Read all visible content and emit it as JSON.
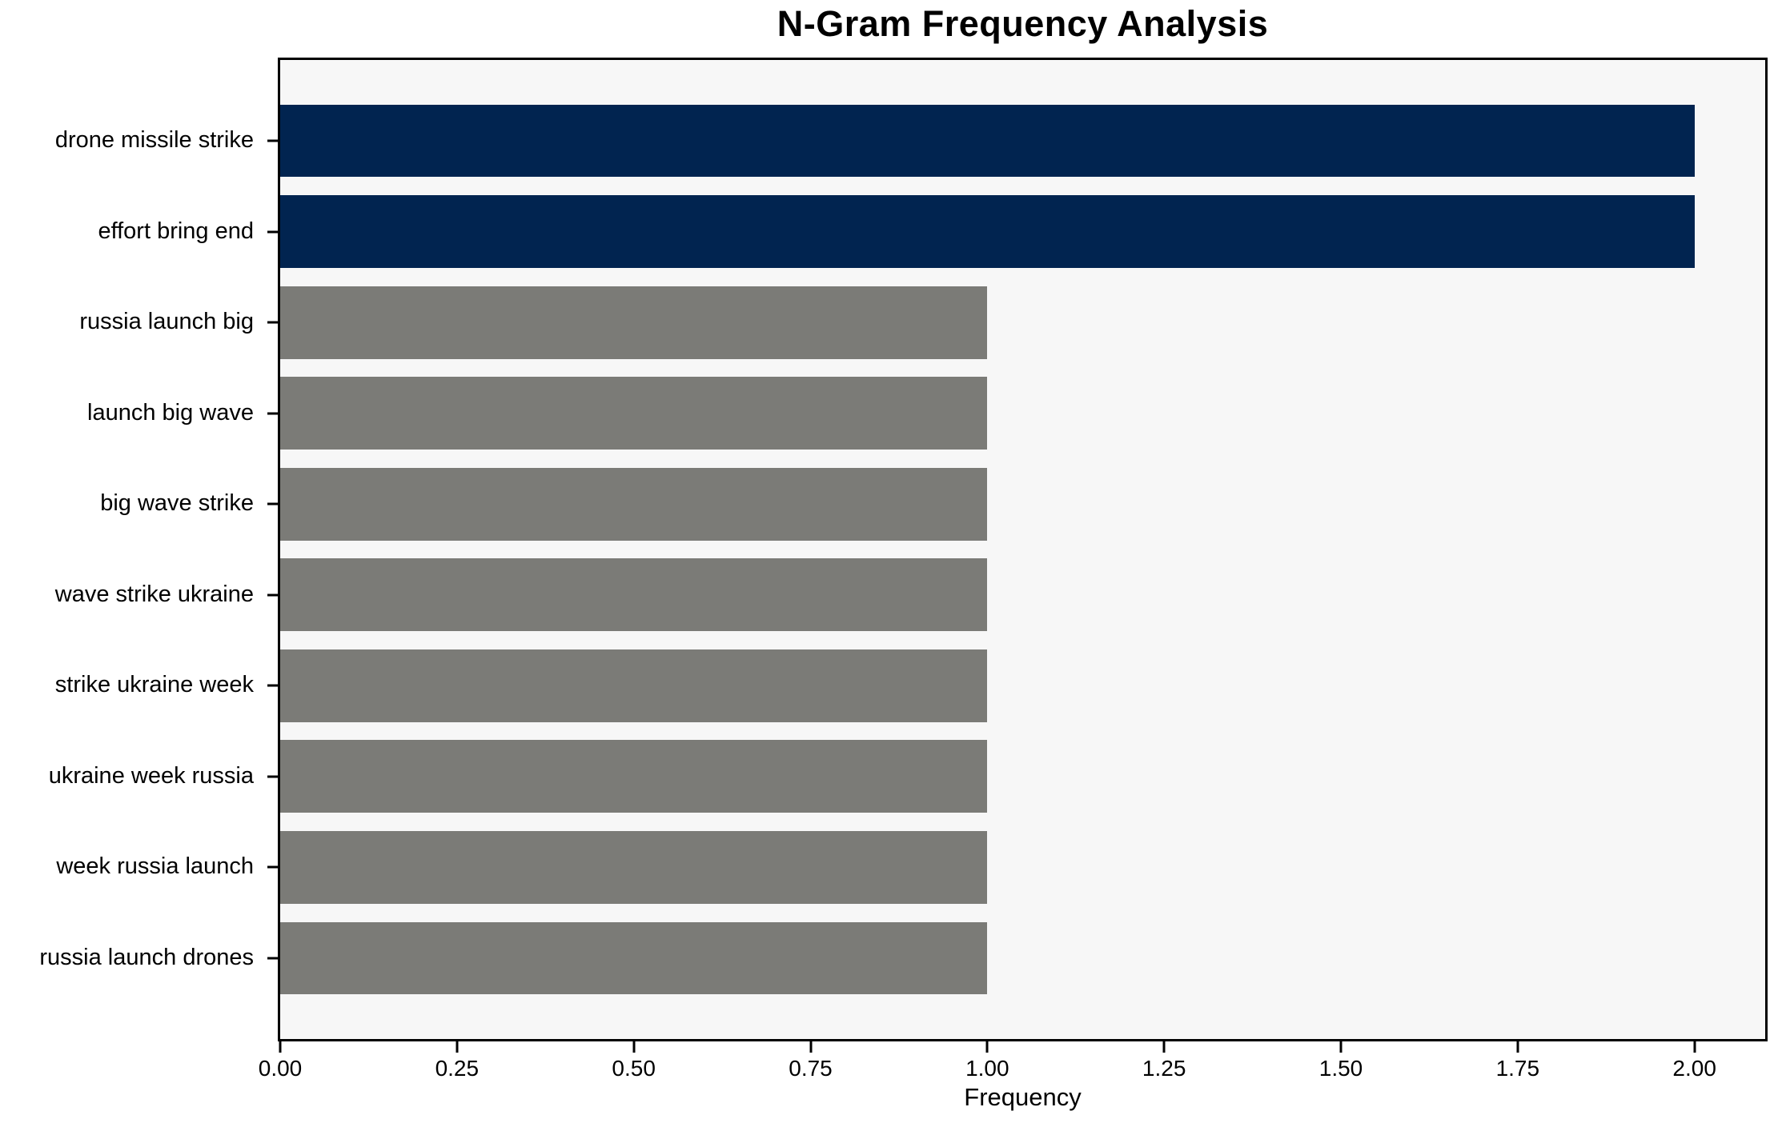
{
  "chart_data": {
    "type": "bar",
    "orientation": "horizontal",
    "title": "N-Gram Frequency Analysis",
    "xlabel": "Frequency",
    "ylabel": "",
    "categories": [
      "drone missile strike",
      "effort bring end",
      "russia launch big",
      "launch big wave",
      "big wave strike",
      "wave strike ukraine",
      "strike ukraine week",
      "ukraine week russia",
      "week russia launch",
      "russia launch drones"
    ],
    "values": [
      2,
      2,
      1,
      1,
      1,
      1,
      1,
      1,
      1,
      1
    ],
    "bar_colors": [
      "#012450",
      "#012450",
      "#7b7b77",
      "#7b7b77",
      "#7b7b77",
      "#7b7b77",
      "#7b7b77",
      "#7b7b77",
      "#7b7b77",
      "#7b7b77"
    ],
    "xlim": [
      0,
      2.1
    ],
    "xticks": [
      "0.00",
      "0.25",
      "0.50",
      "0.75",
      "1.00",
      "1.25",
      "1.50",
      "1.75",
      "2.00"
    ],
    "grid": false,
    "legend_position": "none",
    "colors": {
      "bar_high": "#012450",
      "bar_low": "#7b7b77",
      "plot_background": "#f7f7f7",
      "figure_background": "#ffffff",
      "spine": "#000000",
      "text": "#000000"
    }
  }
}
